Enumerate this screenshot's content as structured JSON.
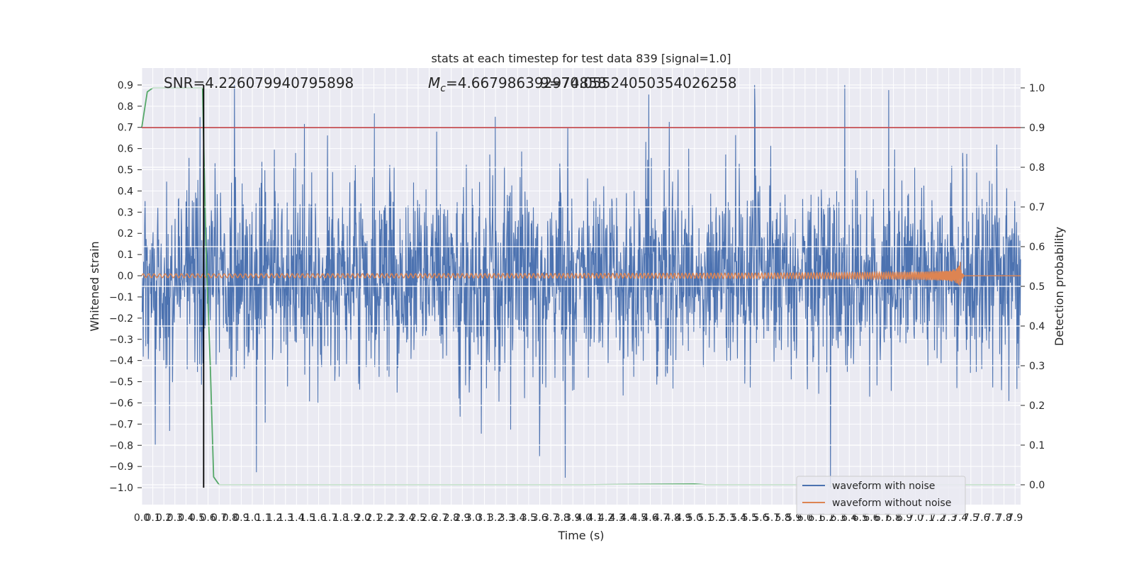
{
  "chart_data": {
    "type": "line",
    "title": "stats at each timestep for test data 839 [signal=1.0]",
    "xlabel": "Time (s)",
    "ylabel_left": "Whitened strain",
    "ylabel_right": "Detection probability",
    "xlim": [
      0.0,
      7.95
    ],
    "ylim_left": [
      -1.08,
      0.98
    ],
    "ylim_right": [
      -0.05,
      1.05
    ],
    "x_ticks": [
      "0.0",
      "0.1",
      "0.2",
      "0.3",
      "0.4",
      "0.5",
      "0.6",
      "0.7",
      "0.8",
      "0.9",
      "1.0",
      "1.1",
      "1.2",
      "1.3",
      "1.4",
      "1.5",
      "1.6",
      "1.7",
      "1.8",
      "1.9",
      "2.0",
      "2.1",
      "2.2",
      "2.3",
      "2.4",
      "2.5",
      "2.6",
      "2.7",
      "2.8",
      "2.9",
      "3.0",
      "3.1",
      "3.2",
      "3.3",
      "3.4",
      "3.5",
      "3.6",
      "3.7",
      "3.8",
      "3.9",
      "4.0",
      "4.1",
      "4.2",
      "4.3",
      "4.4",
      "4.5",
      "4.6",
      "4.7",
      "4.8",
      "4.9",
      "5.0",
      "5.1",
      "5.2",
      "5.3",
      "5.4",
      "5.5",
      "5.6",
      "5.7",
      "5.8",
      "5.9",
      "6.0",
      "6.1",
      "6.2",
      "6.3",
      "6.4",
      "6.5",
      "6.6",
      "6.7",
      "6.8",
      "6.9",
      "7.0",
      "7.1",
      "7.2",
      "7.3",
      "7.4",
      "7.5",
      "7.6",
      "7.7",
      "7.8",
      "7.9"
    ],
    "y_ticks_left": [
      "0.9",
      "0.8",
      "0.7",
      "0.6",
      "0.5",
      "0.4",
      "0.3",
      "0.2",
      "0.1",
      "0.0",
      "−0.1",
      "−0.2",
      "−0.3",
      "−0.4",
      "−0.5",
      "−0.6",
      "−0.7",
      "−0.8",
      "−0.9",
      "−1.0"
    ],
    "y_ticks_right": [
      "1.0",
      "0.9",
      "0.8",
      "0.7",
      "0.6",
      "0.5",
      "0.4",
      "0.3",
      "0.2",
      "0.1",
      "0.0"
    ],
    "annotations": {
      "snr": "SNR=4.226079940795898",
      "mc_prefix": "M",
      "mc_sub": "c",
      "mc_value": "=4.667986392974858",
      "mc_overlap": "9=70.05524050354026258"
    },
    "threshold_line": {
      "axis": "right",
      "value": 0.9,
      "color": "#c44e52"
    },
    "marker_vline": {
      "x": 0.56,
      "color": "#000000"
    },
    "series": [
      {
        "name": "waveform with noise",
        "axis": "left",
        "color": "#4c72b0",
        "kind": "noise",
        "amplitude_range": [
          -1.0,
          0.9
        ]
      },
      {
        "name": "waveform without noise",
        "axis": "left",
        "color": "#dd8452",
        "kind": "chirp",
        "merger_time": 7.4,
        "peak_amplitude": 0.09
      },
      {
        "axis": "right",
        "color": "#55a868",
        "kind": "probability",
        "x": [
          0.0,
          0.05,
          0.1,
          0.2,
          0.3,
          0.4,
          0.5,
          0.55,
          0.58,
          0.62,
          0.65,
          0.7,
          1.0,
          2.0,
          3.0,
          4.0,
          5.0,
          5.1,
          6.0,
          7.0,
          7.9
        ],
        "y": [
          0.9,
          0.99,
          1.0,
          1.0,
          1.0,
          1.0,
          1.0,
          1.0,
          0.6,
          0.3,
          0.02,
          0.0,
          0.0,
          0.0,
          0.0,
          0.0,
          0.002,
          0.0,
          0.0,
          0.0,
          0.0
        ]
      }
    ],
    "legend_position": "lower-right",
    "grid": true,
    "colors": {
      "plot_bg": "#eaeaf2",
      "grid": "#ffffff",
      "noise": "#4c72b0",
      "clean": "#dd8452",
      "prob": "#55a868",
      "threshold": "#c44e52"
    }
  }
}
